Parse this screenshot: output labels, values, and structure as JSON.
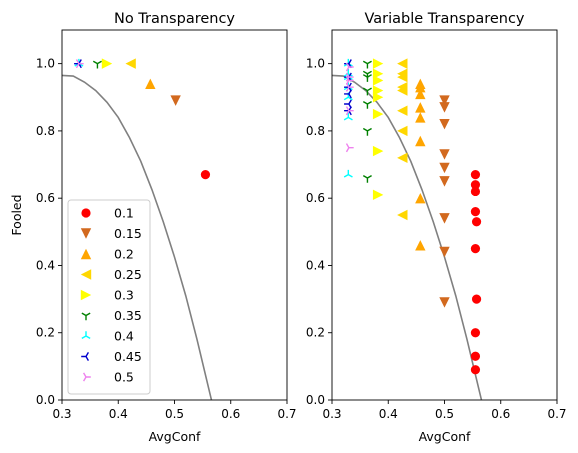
{
  "chart_data": [
    {
      "type": "scatter",
      "title": "No Transparency",
      "xlabel": "AvgConf",
      "ylabel": "Fooled",
      "xlim": [
        0.3,
        0.7
      ],
      "ylim": [
        0.0,
        1.1
      ],
      "xticks": [
        "0.3",
        "0.4",
        "0.5",
        "0.6",
        "0.7"
      ],
      "yticks": [
        "0.0",
        "0.2",
        "0.4",
        "0.6",
        "0.8",
        "1.0"
      ],
      "legend": "lower-left",
      "grid": false,
      "series": [
        {
          "name": "0.1",
          "marker": "circle",
          "color": "#ff0000",
          "points": [
            [
              0.555,
              0.67
            ]
          ]
        },
        {
          "name": "0.15",
          "marker": "triangle-down",
          "color": "#d2691e",
          "points": [
            [
              0.502,
              0.89
            ]
          ]
        },
        {
          "name": "0.2",
          "marker": "triangle-up",
          "color": "#ffa500",
          "points": [
            [
              0.457,
              0.94
            ]
          ]
        },
        {
          "name": "0.25",
          "marker": "triangle-left",
          "color": "#ffd700",
          "points": [
            [
              0.422,
              1.0
            ]
          ]
        },
        {
          "name": "0.3",
          "marker": "triangle-right",
          "color": "#ffff00",
          "points": [
            [
              0.38,
              1.0
            ]
          ]
        },
        {
          "name": "0.35",
          "marker": "tri-down",
          "color": "#008000",
          "points": [
            [
              0.363,
              1.0
            ]
          ]
        },
        {
          "name": "0.4",
          "marker": "tri-up",
          "color": "#00ffff",
          "points": [
            [
              0.33,
              1.0
            ]
          ]
        },
        {
          "name": "0.45",
          "marker": "tri-left",
          "color": "#0000cd",
          "points": [
            [
              0.33,
              1.0
            ]
          ]
        },
        {
          "name": "0.5",
          "marker": "tri-right",
          "color": "#ee82ee",
          "points": [
            [
              0.33,
              1.0
            ]
          ]
        }
      ],
      "curve": {
        "color": "#808080",
        "points": [
          [
            0.3,
            0.965
          ],
          [
            0.32,
            0.963
          ],
          [
            0.34,
            0.945
          ],
          [
            0.36,
            0.92
          ],
          [
            0.38,
            0.885
          ],
          [
            0.4,
            0.84
          ],
          [
            0.42,
            0.78
          ],
          [
            0.44,
            0.71
          ],
          [
            0.46,
            0.625
          ],
          [
            0.48,
            0.53
          ],
          [
            0.5,
            0.425
          ],
          [
            0.52,
            0.31
          ],
          [
            0.54,
            0.18
          ],
          [
            0.56,
            0.04
          ],
          [
            0.57,
            -0.03
          ]
        ]
      }
    },
    {
      "type": "scatter",
      "title": "Variable Transparency",
      "xlabel": "AvgConf",
      "ylabel": "",
      "xlim": [
        0.3,
        0.7
      ],
      "ylim": [
        0.0,
        1.1
      ],
      "xticks": [
        "0.3",
        "0.4",
        "0.5",
        "0.6",
        "0.7"
      ],
      "yticks": [
        "0.0",
        "0.2",
        "0.4",
        "0.6",
        "0.8",
        "1.0"
      ],
      "grid": false,
      "series": [
        {
          "name": "0.1",
          "marker": "circle",
          "color": "#ff0000",
          "points": [
            [
              0.555,
              0.67
            ],
            [
              0.555,
              0.64
            ],
            [
              0.555,
              0.62
            ],
            [
              0.555,
              0.56
            ],
            [
              0.557,
              0.53
            ],
            [
              0.555,
              0.45
            ],
            [
              0.557,
              0.3
            ],
            [
              0.555,
              0.2
            ],
            [
              0.555,
              0.13
            ],
            [
              0.555,
              0.09
            ]
          ]
        },
        {
          "name": "0.15",
          "marker": "triangle-down",
          "color": "#d2691e",
          "points": [
            [
              0.5,
              0.89
            ],
            [
              0.5,
              0.87
            ],
            [
              0.5,
              0.82
            ],
            [
              0.5,
              0.73
            ],
            [
              0.5,
              0.69
            ],
            [
              0.5,
              0.65
            ],
            [
              0.5,
              0.54
            ],
            [
              0.5,
              0.44
            ],
            [
              0.5,
              0.29
            ]
          ]
        },
        {
          "name": "0.2",
          "marker": "triangle-up",
          "color": "#ffa500",
          "points": [
            [
              0.457,
              0.94
            ],
            [
              0.457,
              0.93
            ],
            [
              0.457,
              0.91
            ],
            [
              0.457,
              0.87
            ],
            [
              0.457,
              0.84
            ],
            [
              0.457,
              0.77
            ],
            [
              0.457,
              0.6
            ],
            [
              0.457,
              0.46
            ]
          ]
        },
        {
          "name": "0.25",
          "marker": "triangle-left",
          "color": "#ffd700",
          "points": [
            [
              0.425,
              1.0
            ],
            [
              0.425,
              0.97
            ],
            [
              0.425,
              0.96
            ],
            [
              0.425,
              0.93
            ],
            [
              0.425,
              0.92
            ],
            [
              0.425,
              0.86
            ],
            [
              0.425,
              0.8
            ],
            [
              0.425,
              0.72
            ],
            [
              0.425,
              0.55
            ]
          ]
        },
        {
          "name": "0.3",
          "marker": "triangle-right",
          "color": "#ffff00",
          "points": [
            [
              0.382,
              1.0
            ],
            [
              0.382,
              0.97
            ],
            [
              0.382,
              0.95
            ],
            [
              0.382,
              0.92
            ],
            [
              0.382,
              0.9
            ],
            [
              0.382,
              0.85
            ],
            [
              0.382,
              0.74
            ],
            [
              0.382,
              0.61
            ]
          ]
        },
        {
          "name": "0.35",
          "marker": "tri-down",
          "color": "#008000",
          "points": [
            [
              0.363,
              1.0
            ],
            [
              0.363,
              0.97
            ],
            [
              0.363,
              0.96
            ],
            [
              0.363,
              0.92
            ],
            [
              0.363,
              0.88
            ],
            [
              0.363,
              0.8
            ],
            [
              0.363,
              0.66
            ]
          ]
        },
        {
          "name": "0.4",
          "marker": "tri-up",
          "color": "#00ffff",
          "points": [
            [
              0.329,
              1.0
            ],
            [
              0.329,
              0.97
            ],
            [
              0.329,
              0.96
            ],
            [
              0.329,
              0.93
            ],
            [
              0.329,
              0.9
            ],
            [
              0.329,
              0.84
            ],
            [
              0.329,
              0.67
            ]
          ]
        },
        {
          "name": "0.45",
          "marker": "tri-left",
          "color": "#0000cd",
          "points": [
            [
              0.33,
              1.0
            ],
            [
              0.33,
              0.96
            ],
            [
              0.33,
              0.93
            ],
            [
              0.33,
              0.91
            ],
            [
              0.33,
              0.88
            ],
            [
              0.33,
              0.86
            ]
          ]
        },
        {
          "name": "0.5",
          "marker": "tri-right",
          "color": "#ee82ee",
          "points": [
            [
              0.33,
              0.99
            ],
            [
              0.33,
              0.96
            ],
            [
              0.33,
              0.95
            ],
            [
              0.33,
              0.93
            ],
            [
              0.33,
              0.86
            ],
            [
              0.33,
              0.75
            ]
          ]
        }
      ],
      "curve": {
        "color": "#808080",
        "points": [
          [
            0.3,
            0.965
          ],
          [
            0.32,
            0.963
          ],
          [
            0.34,
            0.945
          ],
          [
            0.36,
            0.92
          ],
          [
            0.38,
            0.885
          ],
          [
            0.4,
            0.84
          ],
          [
            0.42,
            0.78
          ],
          [
            0.44,
            0.71
          ],
          [
            0.46,
            0.625
          ],
          [
            0.48,
            0.53
          ],
          [
            0.5,
            0.425
          ],
          [
            0.52,
            0.31
          ],
          [
            0.54,
            0.18
          ],
          [
            0.56,
            0.04
          ],
          [
            0.57,
            -0.03
          ]
        ]
      }
    }
  ]
}
